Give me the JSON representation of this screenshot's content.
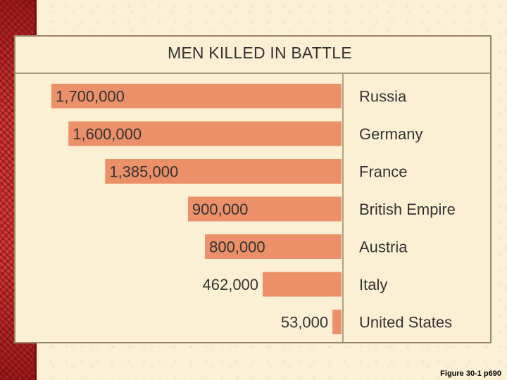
{
  "chart_data": {
    "type": "bar",
    "title": "MEN KILLED IN BATTLE",
    "categories": [
      "Russia",
      "Germany",
      "France",
      "British Empire",
      "Austria",
      "Italy",
      "United States"
    ],
    "values": [
      1700000,
      1600000,
      1385000,
      900000,
      800000,
      462000,
      53000
    ],
    "value_labels": [
      "1,700,000",
      "1,600,000",
      "1,385,000",
      "900,000",
      "800,000",
      "462,000",
      "53,000"
    ],
    "orientation": "horizontal",
    "bar_direction": "right-to-left",
    "xlim": [
      0,
      1700000
    ],
    "bar_color": "#eb9068",
    "grid": false,
    "legend": "none"
  },
  "caption": "Figure 30-1 p690",
  "colors": {
    "slide_background": "#fbf1d6",
    "card_background": "#fbf0d3",
    "border": "#9a8466",
    "accent_strip": "#b82525",
    "text": "#333333"
  }
}
